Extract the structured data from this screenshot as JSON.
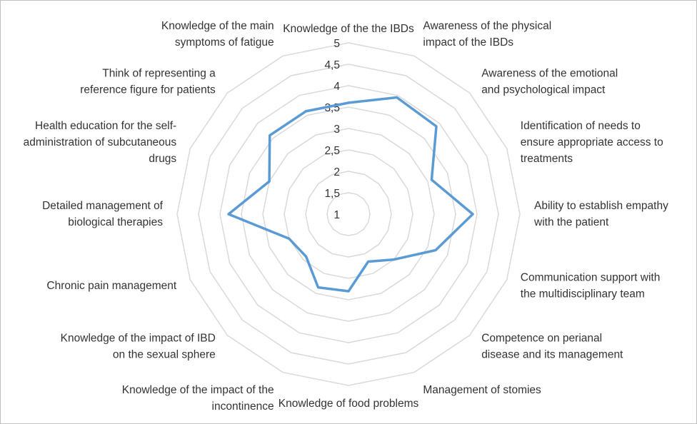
{
  "chart_data": {
    "type": "radar",
    "categories": [
      "Knowledge of the the IBDs",
      "Awareness of the physical impact of the IBDs",
      "Awareness of the emotional and psychological impact",
      "Identification of needs to ensure appropriate access to treatments",
      "Ability to establish empathy with the patient",
      "Communication support with the multidisciplinary team",
      "Competence on perianal disease and its management",
      "Management of stomies",
      "Knowledge of food problems",
      "Knowledge of the impact of the incontinence",
      "Knowledge of the impact of IBD on the sexual sphere",
      "Chronic pain management",
      "Detailed management of biological therapies",
      "Health education for the self-administration of subcutaneous drugs",
      "Think of representing a reference figure for patients",
      "Knowledge of the main symptoms of fatigue"
    ],
    "label_lines": [
      [
        "Knowledge of the the IBDs"
      ],
      [
        "Awareness of the physical",
        "impact of the IBDs"
      ],
      [
        "Awareness of the emotional",
        "and psychological impact"
      ],
      [
        "Identification of needs to",
        "ensure appropriate access to",
        "treatments"
      ],
      [
        "Ability to establish empathy",
        "with the patient"
      ],
      [
        "Communication support with",
        "the multidisciplinary team"
      ],
      [
        "Competence on perianal",
        "disease and its management"
      ],
      [
        "Management of stomies"
      ],
      [
        "Knowledge of food problems"
      ],
      [
        "Knowledge of the impact of the",
        "incontinence"
      ],
      [
        "Knowledge of the impact of IBD",
        "on the sexual sphere"
      ],
      [
        "Chronic pain management"
      ],
      [
        "Detailed management of",
        "biological therapies"
      ],
      [
        "Health education for the self-",
        "administration of subcutaneous",
        "drugs"
      ],
      [
        "Think of representing a",
        "reference figure for patients"
      ],
      [
        "Knowledge of the main",
        "symptoms of fatigue"
      ]
    ],
    "values": [
      3.6,
      3.95,
      3.9,
      3.1,
      3.9,
      3.2,
      2.5,
      2.2,
      2.8,
      2.85,
      2.4,
      2.5,
      3.8,
      3.0,
      3.6,
      3.6
    ],
    "tick_labels": [
      "1",
      "1,5",
      "2",
      "2,5",
      "3",
      "3,5",
      "4",
      "4,5",
      "5"
    ],
    "rlim": [
      1,
      5
    ],
    "grid": true,
    "line_color": "#5b9bd5",
    "grid_color": "#d9d9d9",
    "text_color": "#333333"
  }
}
